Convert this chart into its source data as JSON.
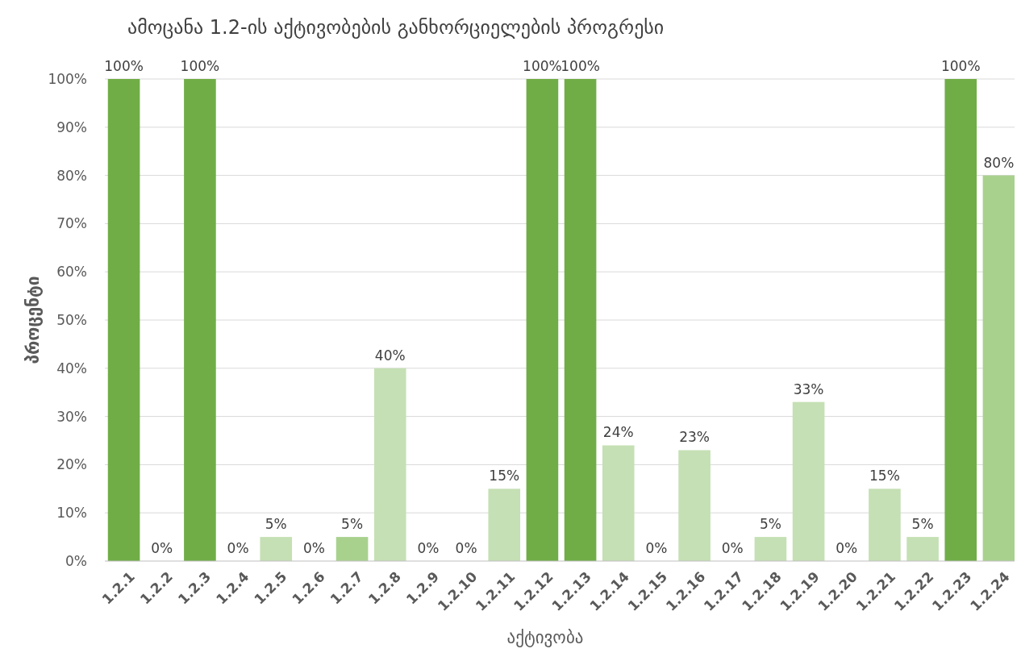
{
  "chart_data": {
    "type": "bar",
    "title": "ამოცანა 1.2-ის აქტივობების განხორციელების პროგრესი",
    "xlabel": "აქტივობა",
    "ylabel": "პროცენტი",
    "categories": [
      "1.2.1",
      "1.2.2",
      "1.2.3",
      "1.2.4",
      "1.2.5",
      "1.2.6",
      "1.2.7",
      "1.2.8",
      "1.2.9",
      "1.2.10",
      "1.2.11",
      "1.2.12",
      "1.2.13",
      "1.2.14",
      "1.2.15",
      "1.2.16",
      "1.2.17",
      "1.2.18",
      "1.2.19",
      "1.2.20",
      "1.2.21",
      "1.2.22",
      "1.2.23",
      "1.2.24"
    ],
    "values": [
      100,
      0,
      100,
      0,
      5,
      0,
      5,
      40,
      0,
      0,
      15,
      100,
      100,
      24,
      0,
      23,
      0,
      5,
      33,
      0,
      15,
      5,
      100,
      80
    ],
    "colors": [
      "#70ad47",
      "#c5e0b4",
      "#70ad47",
      "#c5e0b4",
      "#c5e0b4",
      "#c5e0b4",
      "#a9d18e",
      "#c5e0b4",
      "#c5e0b4",
      "#c5e0b4",
      "#c5e0b4",
      "#70ad47",
      "#70ad47",
      "#c5e0b4",
      "#c5e0b4",
      "#c5e0b4",
      "#c5e0b4",
      "#c5e0b4",
      "#c5e0b4",
      "#c5e0b4",
      "#c5e0b4",
      "#c5e0b4",
      "#70ad47",
      "#a9d18e"
    ],
    "value_labels": [
      "100%",
      "0%",
      "100%",
      "0%",
      "5%",
      "0%",
      "5%",
      "40%",
      "0%",
      "0%",
      "15%",
      "100%",
      "100%",
      "24%",
      "0%",
      "23%",
      "0%",
      "5%",
      "33%",
      "0%",
      "15%",
      "5%",
      "100%",
      "80%"
    ],
    "ylim": [
      0,
      100
    ],
    "yticks": [
      {
        "value": 0,
        "label": "0%"
      },
      {
        "value": 10,
        "label": "10%"
      },
      {
        "value": 20,
        "label": "20%"
      },
      {
        "value": 30,
        "label": "30%"
      },
      {
        "value": 40,
        "label": "40%"
      },
      {
        "value": 50,
        "label": "50%"
      },
      {
        "value": 60,
        "label": "60%"
      },
      {
        "value": 70,
        "label": "70%"
      },
      {
        "value": 80,
        "label": "80%"
      },
      {
        "value": 90,
        "label": "90%"
      },
      {
        "value": 100,
        "label": "100%"
      }
    ],
    "grid": "y"
  }
}
